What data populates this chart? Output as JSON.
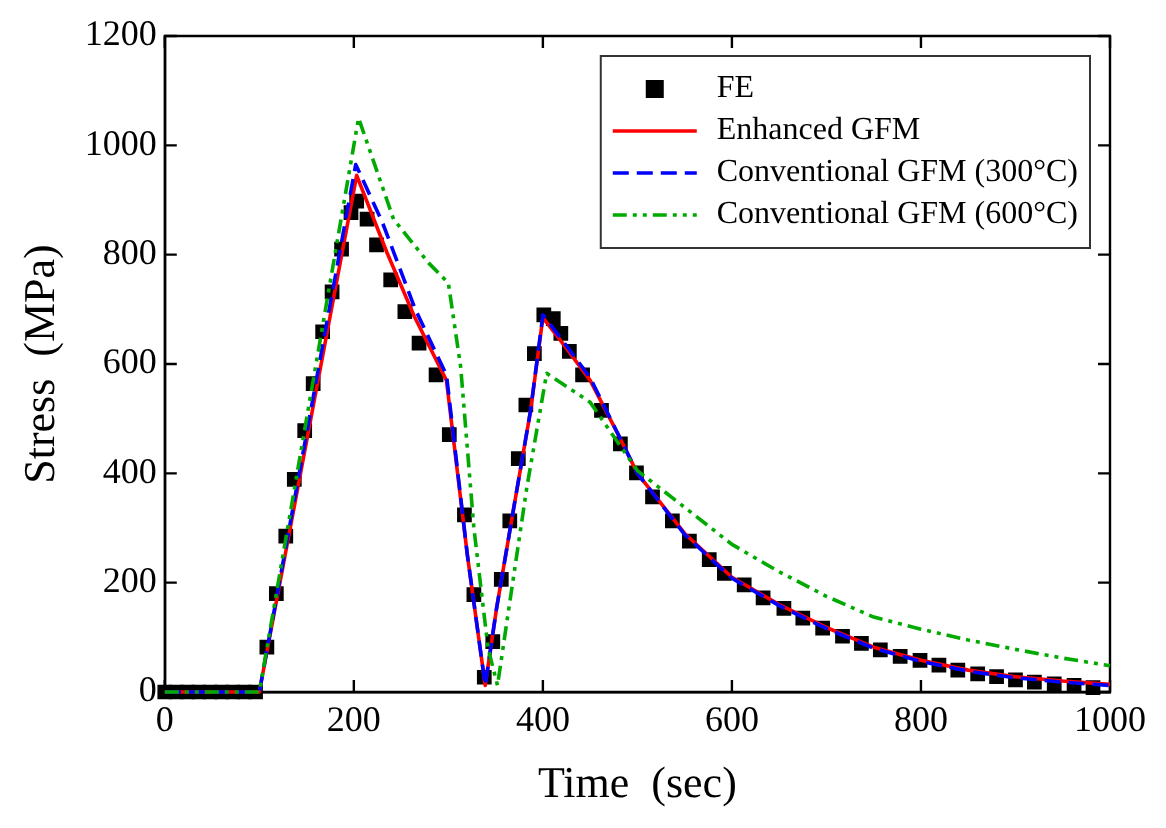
{
  "chart_data": {
    "type": "line",
    "xlabel": "Time  (sec)",
    "ylabel": "Stress  (MPa)",
    "xlim": [
      0,
      1000
    ],
    "xticks": [
      0,
      200,
      400,
      600,
      800,
      1000
    ],
    "ylim": [
      0,
      1200
    ],
    "yticks": [
      0,
      200,
      400,
      600,
      800,
      1000,
      1200
    ],
    "grid": false,
    "legend": "top right",
    "series": [
      {
        "name": "FE",
        "type": "scatter",
        "marker": "square",
        "color": "#000000",
        "x": [
          0,
          12,
          24,
          36,
          48,
          60,
          72,
          84,
          96,
          108,
          118,
          128,
          137,
          148,
          157,
          167,
          177,
          187,
          197,
          203,
          214,
          224,
          239,
          254,
          269,
          287,
          301,
          317,
          327,
          338,
          347,
          356,
          365,
          374,
          382,
          391,
          401,
          411,
          419,
          428,
          442,
          462,
          482,
          499,
          516,
          537,
          555,
          576,
          592,
          613,
          633,
          655,
          675,
          696,
          717,
          737,
          757,
          778,
          799,
          819,
          839,
          860,
          880,
          900,
          920,
          941,
          962,
          982
        ],
        "values": [
          0,
          0,
          0,
          0,
          0,
          0,
          0,
          0,
          0,
          82,
          180,
          285,
          389,
          478,
          564,
          659,
          732,
          810,
          877,
          898,
          865,
          818,
          754,
          696,
          638,
          580,
          471,
          324,
          178,
          27,
          92,
          206,
          313,
          427,
          525,
          619,
          690,
          683,
          656,
          623,
          580,
          515,
          454,
          401,
          357,
          313,
          276,
          242,
          217,
          196,
          172,
          153,
          135,
          117,
          102,
          89,
          77,
          65,
          58,
          49,
          40,
          33,
          28,
          22,
          18,
          15,
          12,
          8
        ]
      },
      {
        "name": "Enhanced GFM",
        "marker": "none",
        "line_style": "solid",
        "color": "#ff0000",
        "x": [
          0,
          100,
          203,
          235,
          264,
          298,
          320,
          339,
          351,
          368,
          387,
          400,
          420,
          450,
          480,
          500,
          550,
          600,
          650,
          700,
          750,
          800,
          850,
          900,
          950,
          1000
        ],
        "values": [
          0,
          0,
          945,
          804,
          687,
          570,
          252,
          12,
          153,
          325,
          515,
          685,
          640,
          570,
          470,
          400,
          290,
          210,
          160,
          118,
          82,
          58,
          40,
          28,
          20,
          14
        ]
      },
      {
        "name": "Conventional GFM (300°C)",
        "marker": "none",
        "line_style": "dashed",
        "color": "#0000ff",
        "x": [
          0,
          100,
          202,
          230,
          265,
          298,
          320,
          339,
          351,
          368,
          387,
          400,
          420,
          450,
          480,
          500,
          550,
          600,
          650,
          700,
          750,
          800,
          850,
          900,
          950,
          1000
        ],
        "values": [
          0,
          0,
          965,
          860,
          700,
          580,
          252,
          12,
          153,
          325,
          515,
          690,
          645,
          575,
          470,
          400,
          288,
          208,
          158,
          116,
          80,
          56,
          38,
          26,
          18,
          12
        ]
      },
      {
        "name": "Conventional GFM (600°C)",
        "marker": "none",
        "line_style": "dotted",
        "color": "#00aa00",
        "x": [
          0,
          100,
          205,
          242,
          279,
          300,
          313,
          327,
          342,
          352,
          364,
          383,
          404,
          450,
          500,
          555,
          600,
          650,
          700,
          750,
          800,
          850,
          900,
          950,
          1000
        ],
        "values": [
          0,
          0,
          1050,
          865,
          785,
          748,
          595,
          300,
          80,
          12,
          153,
          374,
          583,
          530,
          405,
          331,
          270,
          220,
          175,
          137,
          115,
          95,
          78,
          62,
          48
        ]
      }
    ]
  }
}
